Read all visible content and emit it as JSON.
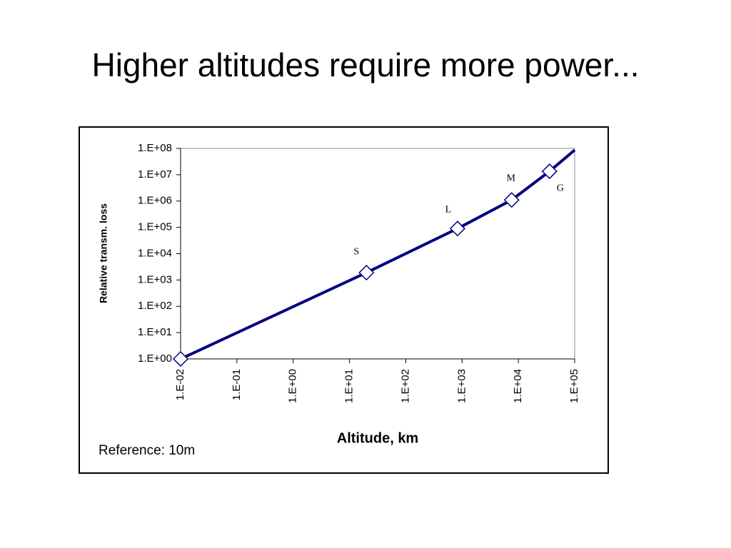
{
  "slide_title": "Higher altitudes require more power...",
  "chart_data": {
    "type": "line",
    "xlabel": "Altitude, km",
    "ylabel": "Relative transm. loss",
    "annotation": "Reference: 10m",
    "xscale": "log",
    "yscale": "log",
    "xlim": [
      0.01,
      100000
    ],
    "ylim": [
      1,
      100000000
    ],
    "xticks": [
      {
        "value": 0.01,
        "label": "1.E-02"
      },
      {
        "value": 0.1,
        "label": "1.E-01"
      },
      {
        "value": 1,
        "label": "1.E+00"
      },
      {
        "value": 10,
        "label": "1.E+01"
      },
      {
        "value": 100,
        "label": "1.E+02"
      },
      {
        "value": 1000,
        "label": "1.E+03"
      },
      {
        "value": 10000,
        "label": "1.E+04"
      },
      {
        "value": 100000,
        "label": "1.E+05"
      }
    ],
    "yticks": [
      {
        "value": 1,
        "label": "1.E+00"
      },
      {
        "value": 10,
        "label": "1.E+01"
      },
      {
        "value": 100,
        "label": "1.E+02"
      },
      {
        "value": 1000,
        "label": "1.E+03"
      },
      {
        "value": 10000,
        "label": "1.E+04"
      },
      {
        "value": 100000,
        "label": "1.E+05"
      },
      {
        "value": 1000000,
        "label": "1.E+06"
      },
      {
        "value": 10000000,
        "label": "1.E+07"
      },
      {
        "value": 100000000,
        "label": "1.E+08"
      }
    ],
    "series": [
      {
        "color": "#000080",
        "x": [
          0.01,
          20,
          830,
          7600,
          35800,
          100000
        ],
        "values": [
          1,
          1900,
          90000,
          1100000,
          13500000,
          87000000
        ]
      }
    ],
    "markers": {
      "color": "#000080",
      "x": [
        0.01,
        20,
        830,
        7600,
        35800
      ],
      "values": [
        1,
        1900,
        90000,
        1100000,
        13500000
      ],
      "labels": [
        null,
        "S",
        "L",
        "M",
        "G"
      ]
    }
  }
}
